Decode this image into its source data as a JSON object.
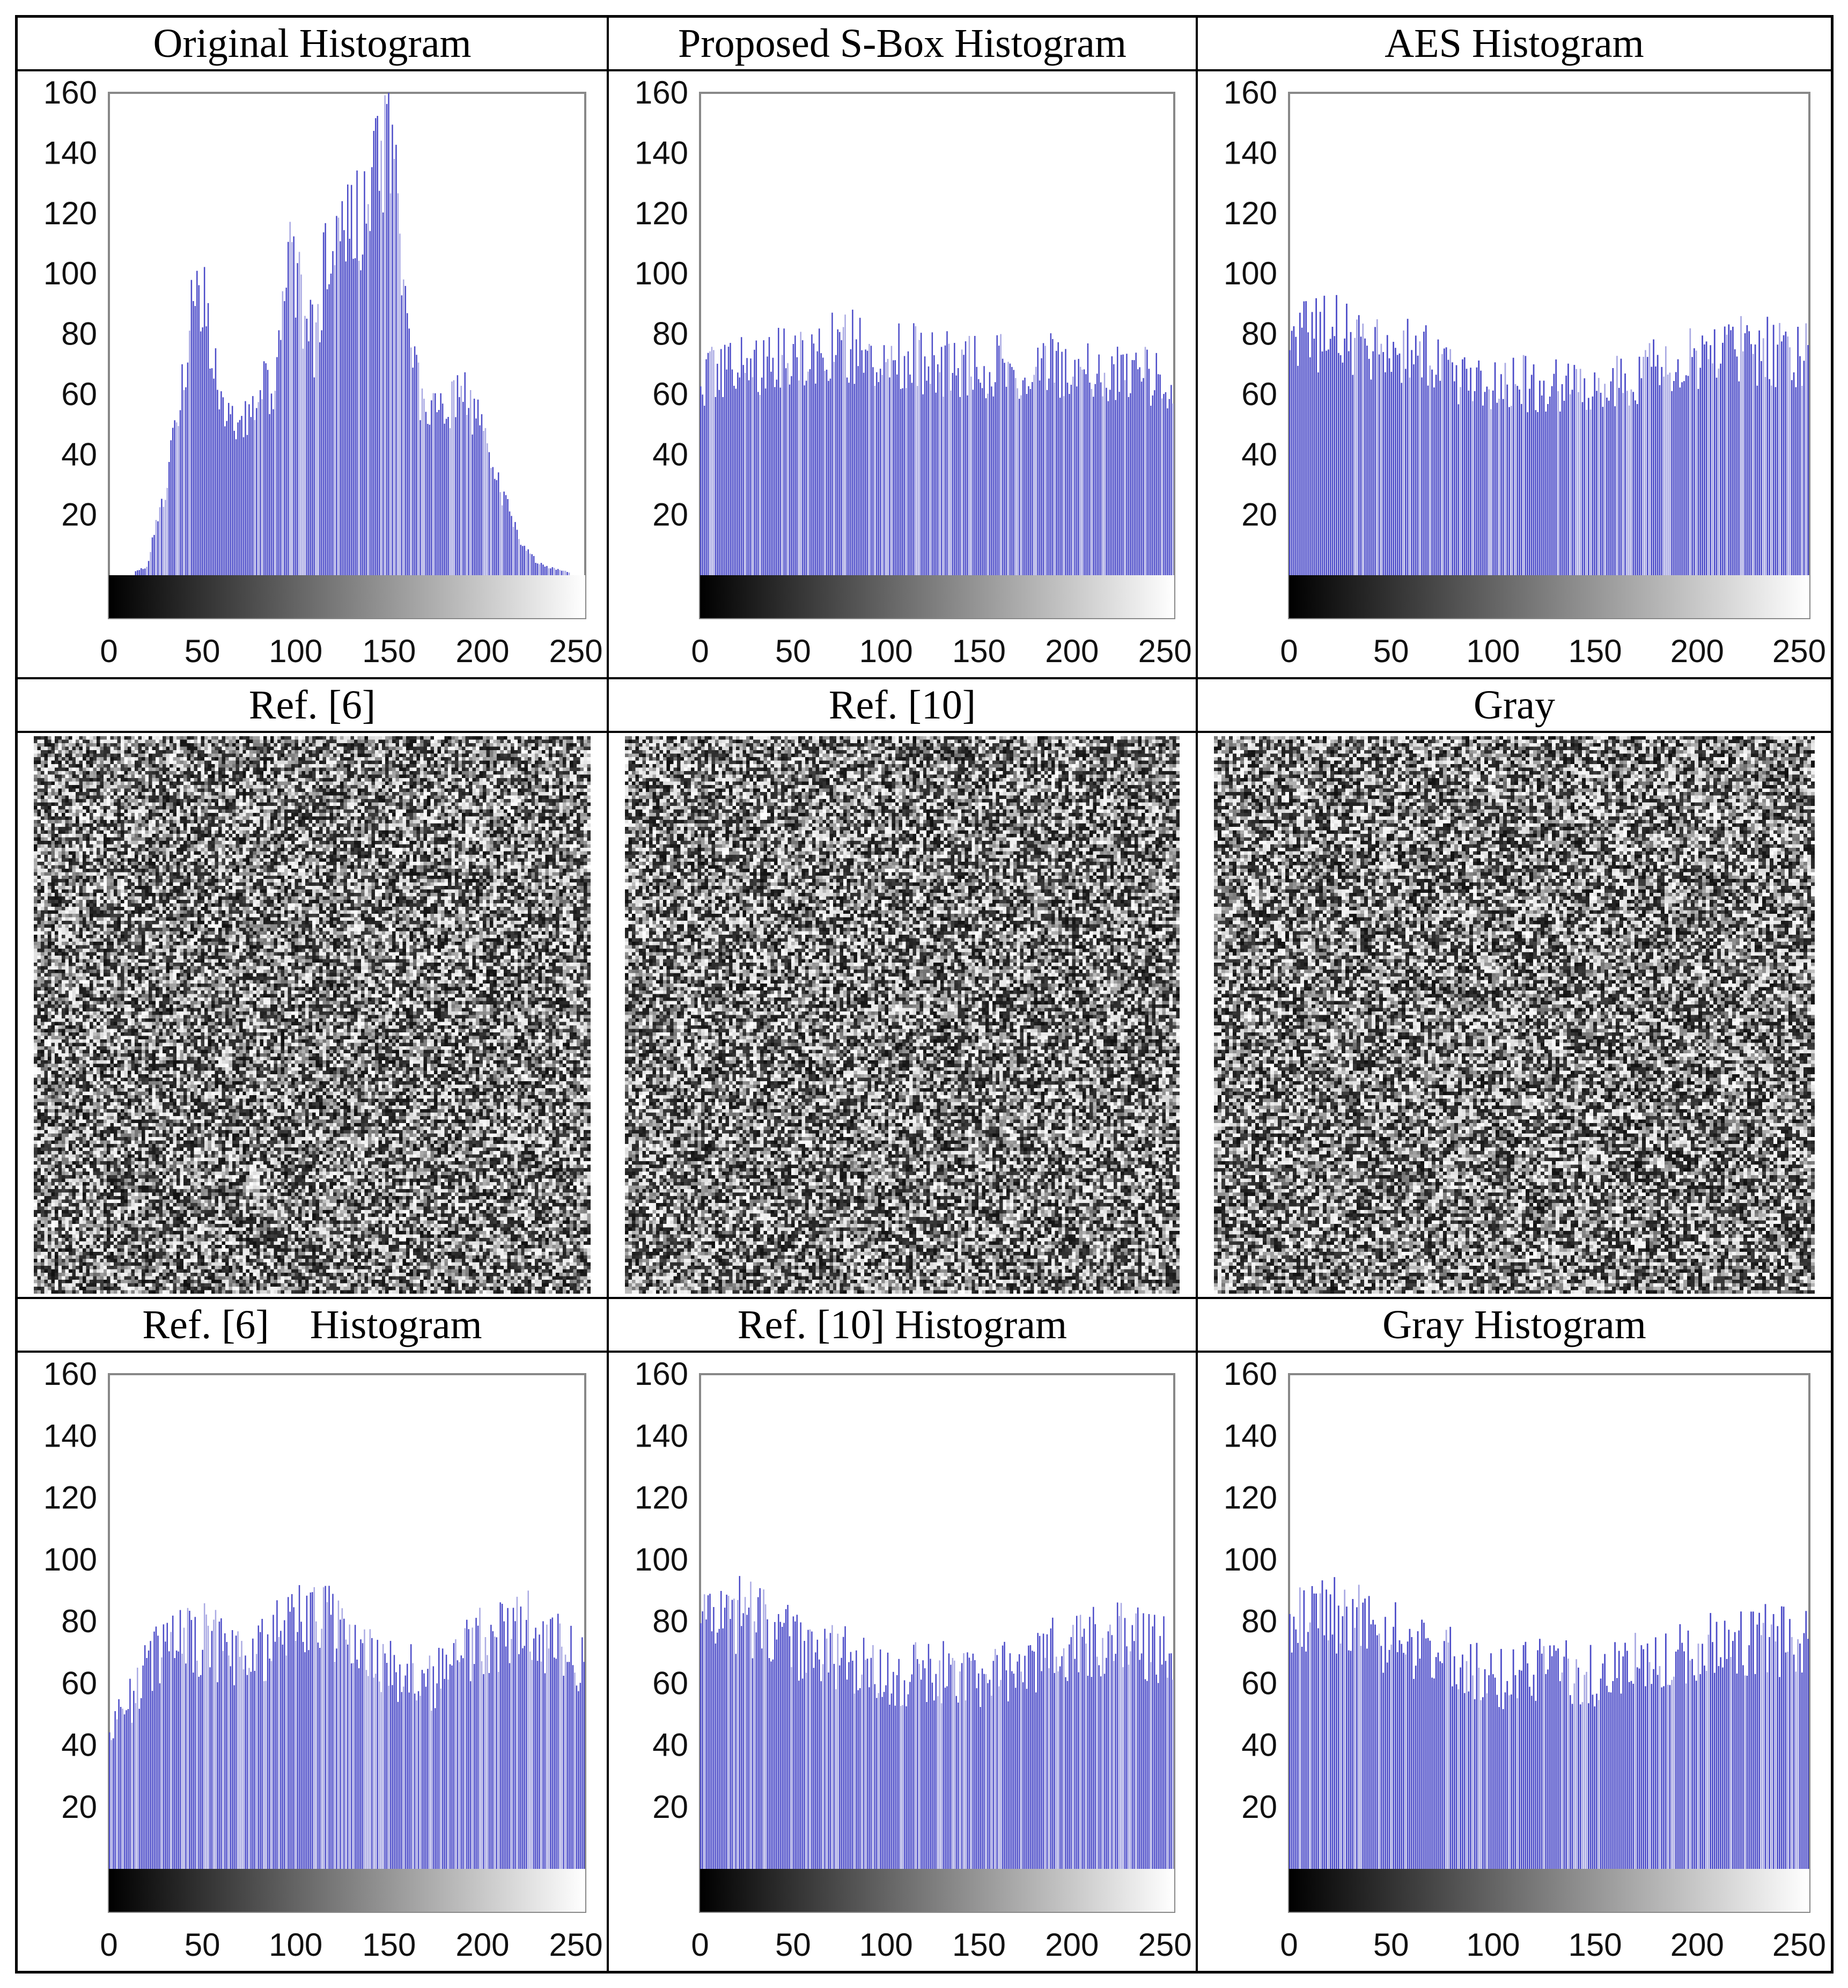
{
  "figure": {
    "rows": [
      [
        {
          "id": "original",
          "kind": "hist",
          "title": "Original Histogram"
        },
        {
          "id": "proposed",
          "kind": "hist",
          "title": "Proposed S-Box Histogram"
        },
        {
          "id": "aes",
          "kind": "hist",
          "title": "AES Histogram"
        }
      ],
      [
        {
          "id": "ref6_img",
          "kind": "noise",
          "title": "Ref. [6]"
        },
        {
          "id": "ref10_img",
          "kind": "noise",
          "title": "Ref. [10]"
        },
        {
          "id": "gray_img",
          "kind": "noise",
          "title": "Gray"
        }
      ],
      [
        {
          "id": "ref6",
          "kind": "hist",
          "title": "Ref. [6]    Histogram"
        },
        {
          "id": "ref10",
          "kind": "hist",
          "title": "Ref. [10] Histogram"
        },
        {
          "id": "gray",
          "kind": "hist",
          "title": "Gray Histogram"
        }
      ]
    ]
  },
  "colors": {
    "bar": "#4b4bc8",
    "bar_light": "#a9a9e3",
    "axis": "#888888",
    "noise_dark": "#111111",
    "noise_light": "#f2f2f2"
  },
  "chart_data": [
    {
      "id": "original",
      "type": "bar",
      "title": "Original Histogram",
      "xlabel": "",
      "ylabel": "",
      "xlim": [
        0,
        255
      ],
      "ylim": [
        0,
        160
      ],
      "x_ticks": [
        0,
        50,
        100,
        150,
        200,
        250
      ],
      "y_ticks": [
        20,
        40,
        60,
        80,
        100,
        120,
        140,
        160
      ],
      "colorbar": "grayscale 0-255",
      "x_bins": [
        0,
        10,
        20,
        30,
        40,
        45,
        50,
        60,
        70,
        80,
        90,
        95,
        100,
        110,
        120,
        125,
        130,
        140,
        150,
        155,
        160,
        170,
        180,
        190,
        200,
        210,
        220,
        230,
        240,
        255
      ],
      "values": [
        0,
        0,
        3,
        30,
        70,
        100,
        95,
        55,
        48,
        60,
        68,
        108,
        98,
        80,
        120,
        132,
        118,
        125,
        152,
        120,
        80,
        55,
        58,
        62,
        50,
        30,
        12,
        4,
        2,
        0
      ]
    },
    {
      "id": "proposed",
      "type": "bar",
      "title": "Proposed S-Box Histogram",
      "xlabel": "",
      "ylabel": "",
      "xlim": [
        0,
        255
      ],
      "ylim": [
        0,
        160
      ],
      "x_ticks": [
        0,
        50,
        100,
        150,
        200,
        250
      ],
      "y_ticks": [
        20,
        40,
        60,
        80,
        100,
        120,
        140,
        160
      ],
      "colorbar": "grayscale 0-255",
      "x_bins": [
        0,
        25,
        50,
        75,
        100,
        125,
        150,
        175,
        200,
        225,
        255
      ],
      "values": [
        68,
        72,
        74,
        78,
        76,
        72,
        70,
        71,
        72,
        70,
        65
      ]
    },
    {
      "id": "aes",
      "type": "bar",
      "title": "AES Histogram",
      "xlabel": "",
      "ylabel": "",
      "xlim": [
        0,
        255
      ],
      "ylim": [
        0,
        160
      ],
      "x_ticks": [
        0,
        50,
        100,
        150,
        200,
        250
      ],
      "y_ticks": [
        20,
        40,
        60,
        80,
        100,
        120,
        140,
        160
      ],
      "colorbar": "grayscale 0-255",
      "x_bins": [
        0,
        25,
        50,
        75,
        100,
        125,
        150,
        175,
        200,
        225,
        255
      ],
      "values": [
        80,
        82,
        76,
        72,
        62,
        66,
        64,
        68,
        74,
        76,
        74
      ]
    },
    {
      "id": "ref6",
      "type": "bar",
      "title": "Ref. [6]    Histogram",
      "xlabel": "",
      "ylabel": "",
      "xlim": [
        0,
        255
      ],
      "ylim": [
        0,
        160
      ],
      "x_ticks": [
        0,
        50,
        100,
        150,
        200,
        250
      ],
      "y_ticks": [
        20,
        40,
        60,
        80,
        100,
        120,
        140,
        160
      ],
      "colorbar": "grayscale 0-255",
      "x_bins": [
        0,
        10,
        25,
        50,
        75,
        100,
        125,
        150,
        175,
        200,
        225,
        255
      ],
      "values": [
        45,
        55,
        72,
        76,
        68,
        82,
        80,
        66,
        62,
        76,
        80,
        66
      ]
    },
    {
      "id": "ref10",
      "type": "bar",
      "title": "Ref. [10] Histogram",
      "xlabel": "",
      "ylabel": "",
      "xlim": [
        0,
        255
      ],
      "ylim": [
        0,
        160
      ],
      "x_ticks": [
        0,
        50,
        100,
        150,
        200,
        250
      ],
      "y_ticks": [
        20,
        40,
        60,
        80,
        100,
        120,
        140,
        160
      ],
      "colorbar": "grayscale 0-255",
      "x_bins": [
        0,
        25,
        50,
        75,
        100,
        125,
        150,
        175,
        200,
        225,
        255
      ],
      "values": [
        80,
        84,
        74,
        70,
        62,
        66,
        62,
        68,
        74,
        76,
        72
      ]
    },
    {
      "id": "gray",
      "type": "bar",
      "title": "Gray Histogram",
      "xlabel": "",
      "ylabel": "",
      "xlim": [
        0,
        255
      ],
      "ylim": [
        0,
        160
      ],
      "x_ticks": [
        0,
        50,
        100,
        150,
        200,
        250
      ],
      "y_ticks": [
        20,
        40,
        60,
        80,
        100,
        120,
        140,
        160
      ],
      "colorbar": "grayscale 0-255",
      "x_bins": [
        0,
        25,
        50,
        75,
        100,
        125,
        150,
        175,
        200,
        225,
        255
      ],
      "values": [
        82,
        84,
        76,
        72,
        62,
        66,
        64,
        68,
        74,
        76,
        74
      ]
    }
  ]
}
